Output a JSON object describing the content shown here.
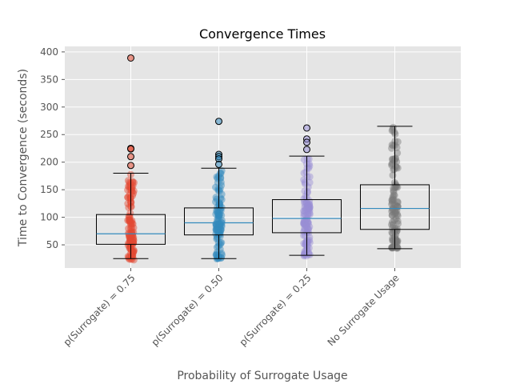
{
  "chart_data": {
    "type": "boxplot-with-jitter",
    "title": "Convergence Times",
    "xlabel": "Probability of Surrogate Usage",
    "ylabel": "Time to Convergence (seconds)",
    "ylim": [
      8,
      410
    ],
    "yticks": [
      50,
      100,
      150,
      200,
      250,
      300,
      350,
      400
    ],
    "grid": true,
    "series": [
      {
        "name": "p(Surrogate) = 0.75",
        "color": "#e24a33",
        "whisker_low": 25,
        "q1": 51,
        "median": 70,
        "q3": 105,
        "whisker_high": 180,
        "outliers": [
          389,
          225,
          224,
          210,
          194
        ],
        "points_min": 22,
        "points_max": 178
      },
      {
        "name": "p(Surrogate) = 0.50",
        "color": "#348abd",
        "whisker_low": 25,
        "q1": 68,
        "median": 90,
        "q3": 117,
        "whisker_high": 189,
        "outliers": [
          274,
          214,
          210,
          206,
          196
        ],
        "points_min": 24,
        "points_max": 187
      },
      {
        "name": "p(Surrogate) = 0.25",
        "color": "#988ed5",
        "whisker_low": 31,
        "q1": 72,
        "median": 98,
        "q3": 132,
        "whisker_high": 211,
        "outliers": [
          262,
          242,
          236,
          223
        ],
        "points_min": 30,
        "points_max": 209
      },
      {
        "name": "No Surrogate Usage",
        "color": "#777777",
        "whisker_low": 43,
        "q1": 78,
        "median": 116,
        "q3": 159,
        "whisker_high": 265,
        "outliers": [],
        "points_min": 42,
        "points_max": 265
      }
    ]
  }
}
